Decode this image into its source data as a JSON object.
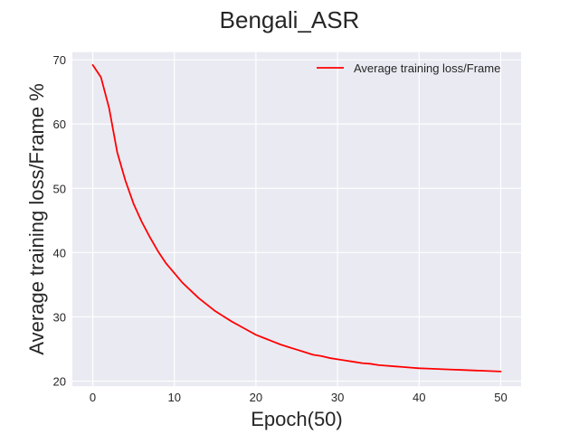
{
  "chart_data": {
    "type": "line",
    "title": "Bengali_ASR",
    "xlabel": "Epoch(50)",
    "ylabel": "Average training loss/Frame %",
    "xlim": [
      -2.5,
      52.5
    ],
    "ylim": [
      19.2,
      71.2
    ],
    "xticks": [
      0,
      10,
      20,
      30,
      40,
      50
    ],
    "yticks": [
      20,
      30,
      40,
      50,
      60,
      70
    ],
    "grid": true,
    "legend_position": "top-right",
    "series": [
      {
        "name": "Average training loss/Frame",
        "color": "#ff0000",
        "x": [
          0,
          1,
          2,
          3,
          4,
          5,
          6,
          7,
          8,
          9,
          10,
          11,
          12,
          13,
          14,
          15,
          16,
          17,
          18,
          19,
          20,
          21,
          22,
          23,
          24,
          25,
          26,
          27,
          28,
          29,
          30,
          31,
          32,
          33,
          34,
          35,
          36,
          37,
          38,
          39,
          40,
          41,
          42,
          43,
          44,
          45,
          46,
          47,
          48,
          49,
          50
        ],
        "y": [
          69.2,
          67.3,
          62.5,
          55.6,
          51.2,
          47.6,
          44.8,
          42.4,
          40.2,
          38.3,
          36.8,
          35.3,
          34.1,
          32.9,
          31.9,
          30.9,
          30.1,
          29.3,
          28.6,
          27.9,
          27.2,
          26.7,
          26.2,
          25.7,
          25.3,
          24.9,
          24.5,
          24.1,
          23.9,
          23.6,
          23.4,
          23.2,
          23.0,
          22.8,
          22.7,
          22.5,
          22.4,
          22.3,
          22.2,
          22.1,
          22.0,
          21.95,
          21.9,
          21.85,
          21.8,
          21.75,
          21.7,
          21.65,
          21.6,
          21.55,
          21.5
        ]
      }
    ]
  }
}
